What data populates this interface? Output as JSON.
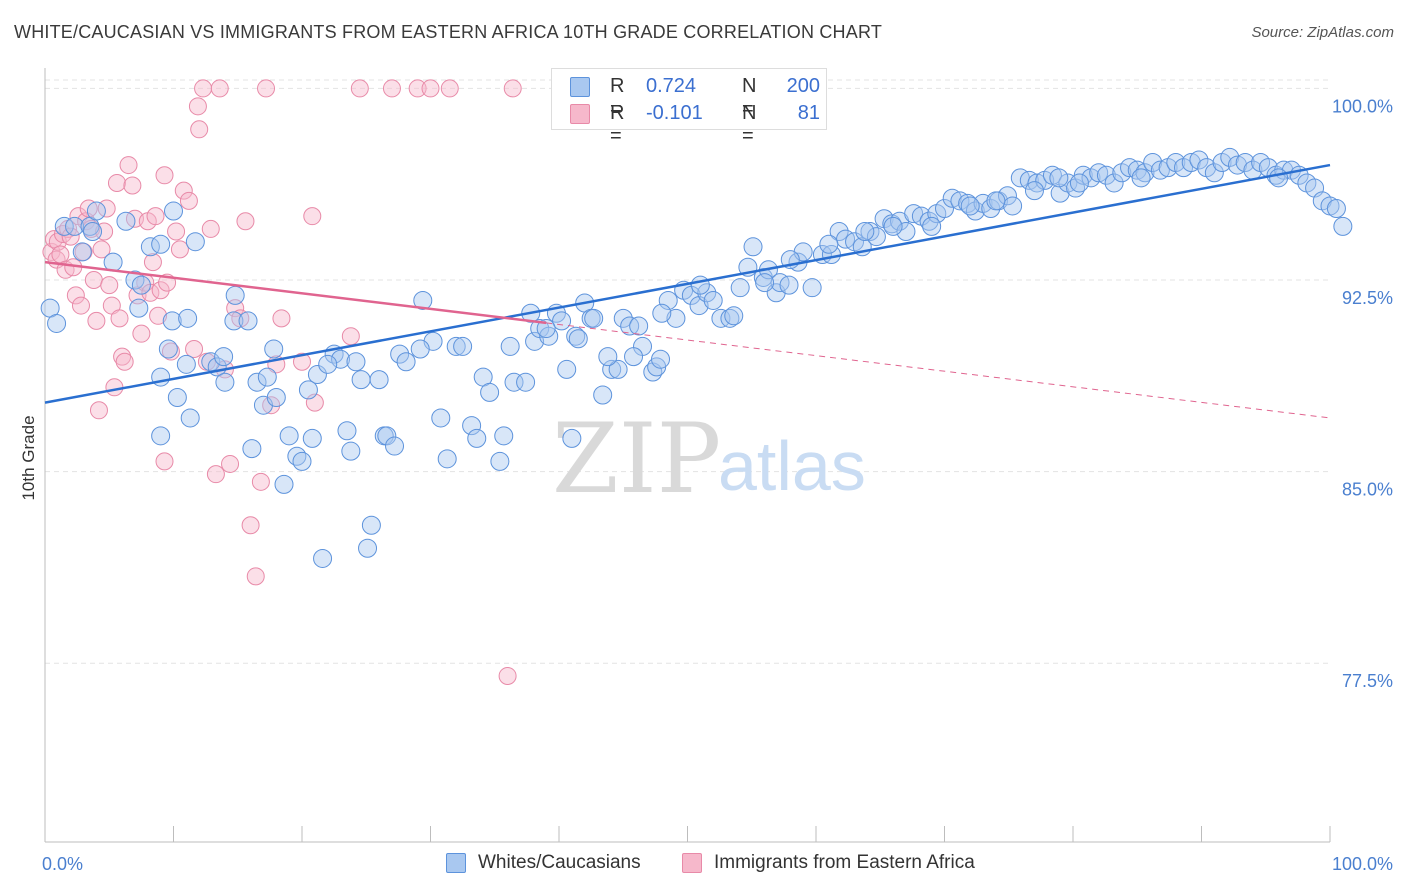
{
  "header": {
    "title": "WHITE/CAUCASIAN VS IMMIGRANTS FROM EASTERN AFRICA 10TH GRADE CORRELATION CHART",
    "source": "Source: ZipAtlas.com"
  },
  "watermark": {
    "zip": "ZIP",
    "atlas": "atlas"
  },
  "legend": {
    "rows": [
      {
        "r_label": "R =",
        "r_value": "0.724",
        "n_label": "N =",
        "n_value": "200"
      },
      {
        "r_label": "R =",
        "r_value": "-0.101",
        "n_label": "N =",
        "n_value": "81"
      }
    ]
  },
  "bottom_legend": [
    "Whites/Caucasians",
    "Immigrants from Eastern Africa"
  ],
  "colors": {
    "blue_fill": "#a9c8f0",
    "blue_stroke": "#5d93dc",
    "blue_line": "#2a6fd0",
    "pink_fill": "#f6b8cb",
    "pink_stroke": "#e88aa8",
    "pink_line": "#e0648f",
    "grid": "#e3e3e3",
    "tick_text": "#4a7fcf"
  },
  "chart_data": {
    "type": "scatter",
    "title": "WHITE/CAUCASIAN VS IMMIGRANTS FROM EASTERN AFRICA 10TH GRADE CORRELATION CHART",
    "xlabel": "",
    "ylabel": "10th Grade",
    "xlim": [
      0,
      100
    ],
    "ylim": [
      70.5,
      100.8
    ],
    "x_tick_labels": [
      "0.0%",
      "100.0%"
    ],
    "y_ticks": [
      77.5,
      85.0,
      92.5,
      100.0
    ],
    "y_tick_labels": [
      "77.5%",
      "85.0%",
      "92.5%",
      "100.0%"
    ],
    "grid": true,
    "legend_position": "top-center",
    "series": [
      {
        "name": "Whites/Caucasians",
        "r": 0.724,
        "n": 200,
        "trend": {
          "x": [
            0,
            100
          ],
          "y": [
            87.7,
            97.0
          ]
        },
        "points": [
          [
            0.4,
            91.4
          ],
          [
            0.9,
            90.8
          ],
          [
            1.5,
            94.6
          ],
          [
            2.3,
            94.6
          ],
          [
            3.5,
            94.6
          ],
          [
            4.0,
            95.2
          ],
          [
            2.9,
            93.6
          ],
          [
            3.7,
            94.4
          ],
          [
            5.3,
            93.2
          ],
          [
            6.3,
            94.8
          ],
          [
            7.3,
            91.4
          ],
          [
            7.0,
            92.5
          ],
          [
            7.5,
            92.3
          ],
          [
            8.2,
            93.8
          ],
          [
            9.0,
            93.9
          ],
          [
            10.0,
            95.2
          ],
          [
            9.0,
            88.7
          ],
          [
            9.0,
            86.4
          ],
          [
            9.6,
            89.8
          ],
          [
            9.9,
            90.9
          ],
          [
            10.3,
            87.9
          ],
          [
            11.0,
            89.2
          ],
          [
            11.1,
            91.0
          ],
          [
            11.3,
            87.1
          ],
          [
            11.7,
            94.0
          ],
          [
            12.9,
            89.3
          ],
          [
            13.4,
            89.1
          ],
          [
            13.9,
            89.5
          ],
          [
            14.0,
            88.5
          ],
          [
            14.7,
            90.9
          ],
          [
            14.8,
            91.9
          ],
          [
            15.8,
            90.9
          ],
          [
            16.1,
            85.9
          ],
          [
            16.5,
            88.5
          ],
          [
            17.0,
            87.6
          ],
          [
            17.3,
            88.7
          ],
          [
            17.8,
            89.8
          ],
          [
            18.6,
            84.5
          ],
          [
            19.0,
            86.4
          ],
          [
            19.6,
            85.6
          ],
          [
            20.0,
            85.4
          ],
          [
            20.8,
            86.3
          ],
          [
            21.2,
            88.8
          ],
          [
            21.6,
            81.6
          ],
          [
            22.5,
            89.6
          ],
          [
            23.0,
            89.4
          ],
          [
            23.5,
            86.6
          ],
          [
            23.8,
            85.8
          ],
          [
            24.2,
            89.3
          ],
          [
            24.6,
            88.6
          ],
          [
            25.1,
            82.0
          ],
          [
            25.4,
            82.9
          ],
          [
            26.4,
            86.4
          ],
          [
            26.6,
            86.4
          ],
          [
            27.2,
            86.0
          ],
          [
            27.6,
            89.6
          ],
          [
            28.1,
            89.3
          ],
          [
            29.4,
            91.7
          ],
          [
            30.2,
            90.1
          ],
          [
            30.8,
            87.1
          ],
          [
            31.3,
            85.5
          ],
          [
            32.0,
            89.9
          ],
          [
            32.5,
            89.9
          ],
          [
            33.2,
            86.8
          ],
          [
            33.6,
            86.3
          ],
          [
            34.1,
            88.7
          ],
          [
            34.6,
            88.1
          ],
          [
            35.4,
            85.4
          ],
          [
            35.7,
            86.4
          ],
          [
            36.2,
            89.9
          ],
          [
            36.5,
            88.5
          ],
          [
            37.4,
            88.5
          ],
          [
            37.8,
            91.2
          ],
          [
            38.1,
            90.1
          ],
          [
            38.5,
            90.6
          ],
          [
            39.2,
            90.3
          ],
          [
            39.8,
            91.2
          ],
          [
            40.2,
            90.9
          ],
          [
            40.6,
            89.0
          ],
          [
            41.0,
            86.3
          ],
          [
            41.3,
            90.3
          ],
          [
            42.0,
            91.6
          ],
          [
            42.5,
            91.0
          ],
          [
            42.7,
            91.0
          ],
          [
            43.4,
            88.0
          ],
          [
            44.1,
            89.0
          ],
          [
            44.6,
            89.0
          ],
          [
            45.0,
            91.0
          ],
          [
            45.5,
            90.7
          ],
          [
            46.2,
            90.7
          ],
          [
            46.5,
            89.9
          ],
          [
            47.3,
            88.9
          ],
          [
            47.6,
            89.1
          ],
          [
            47.9,
            89.4
          ],
          [
            48.5,
            91.7
          ],
          [
            49.1,
            91.0
          ],
          [
            49.7,
            92.1
          ],
          [
            50.3,
            91.9
          ],
          [
            50.9,
            91.5
          ],
          [
            51.5,
            92.0
          ],
          [
            52.0,
            91.7
          ],
          [
            52.6,
            91.0
          ],
          [
            53.3,
            91.0
          ],
          [
            54.1,
            92.2
          ],
          [
            54.7,
            93.0
          ],
          [
            55.1,
            93.8
          ],
          [
            55.9,
            92.6
          ],
          [
            56.3,
            92.9
          ],
          [
            56.9,
            92.0
          ],
          [
            57.2,
            92.4
          ],
          [
            57.9,
            92.3
          ],
          [
            58.6,
            93.2
          ],
          [
            59.0,
            93.6
          ],
          [
            59.7,
            92.2
          ],
          [
            60.5,
            93.5
          ],
          [
            61.2,
            93.5
          ],
          [
            61.8,
            94.4
          ],
          [
            62.3,
            94.1
          ],
          [
            63.0,
            94.0
          ],
          [
            63.6,
            93.8
          ],
          [
            64.2,
            94.4
          ],
          [
            64.7,
            94.2
          ],
          [
            65.3,
            94.9
          ],
          [
            65.9,
            94.7
          ],
          [
            66.5,
            94.8
          ],
          [
            67.0,
            94.4
          ],
          [
            67.6,
            95.1
          ],
          [
            68.2,
            95.0
          ],
          [
            68.8,
            94.8
          ],
          [
            69.4,
            95.1
          ],
          [
            70.0,
            95.3
          ],
          [
            70.6,
            95.7
          ],
          [
            71.2,
            95.6
          ],
          [
            71.8,
            95.5
          ],
          [
            72.4,
            95.2
          ],
          [
            73.0,
            95.5
          ],
          [
            73.6,
            95.3
          ],
          [
            74.2,
            95.6
          ],
          [
            74.9,
            95.8
          ],
          [
            75.3,
            95.4
          ],
          [
            75.9,
            96.5
          ],
          [
            76.6,
            96.4
          ],
          [
            77.2,
            96.3
          ],
          [
            77.8,
            96.4
          ],
          [
            78.4,
            96.6
          ],
          [
            79.0,
            95.9
          ],
          [
            79.6,
            96.3
          ],
          [
            80.2,
            96.1
          ],
          [
            80.8,
            96.6
          ],
          [
            81.4,
            96.5
          ],
          [
            82.0,
            96.7
          ],
          [
            82.6,
            96.6
          ],
          [
            83.2,
            96.3
          ],
          [
            83.8,
            96.7
          ],
          [
            84.4,
            96.9
          ],
          [
            85.0,
            96.8
          ],
          [
            85.6,
            96.7
          ],
          [
            86.2,
            97.1
          ],
          [
            86.8,
            96.8
          ],
          [
            87.4,
            96.9
          ],
          [
            88.0,
            97.1
          ],
          [
            88.6,
            96.9
          ],
          [
            89.2,
            97.1
          ],
          [
            89.8,
            97.2
          ],
          [
            90.4,
            96.9
          ],
          [
            91.0,
            96.7
          ],
          [
            91.6,
            97.1
          ],
          [
            92.2,
            97.3
          ],
          [
            92.8,
            97.0
          ],
          [
            93.4,
            97.1
          ],
          [
            94.0,
            96.8
          ],
          [
            94.6,
            97.1
          ],
          [
            95.2,
            96.9
          ],
          [
            95.8,
            96.6
          ],
          [
            96.4,
            96.8
          ],
          [
            97.0,
            96.8
          ],
          [
            97.6,
            96.6
          ],
          [
            98.2,
            96.3
          ],
          [
            98.8,
            96.1
          ],
          [
            99.4,
            95.6
          ],
          [
            100.0,
            95.4
          ],
          [
            100.5,
            95.3
          ],
          [
            101.0,
            94.6
          ],
          [
            96.0,
            96.5
          ],
          [
            85.3,
            96.5
          ],
          [
            80.5,
            96.3
          ],
          [
            78.9,
            96.5
          ],
          [
            77.0,
            96.0
          ],
          [
            74.0,
            95.6
          ],
          [
            72.0,
            95.4
          ],
          [
            69.0,
            94.6
          ],
          [
            66.0,
            94.6
          ],
          [
            63.8,
            94.4
          ],
          [
            61.0,
            93.9
          ],
          [
            58.0,
            93.3
          ],
          [
            56.0,
            92.4
          ],
          [
            53.6,
            91.1
          ],
          [
            51.0,
            92.3
          ],
          [
            48.0,
            91.2
          ],
          [
            45.8,
            89.5
          ],
          [
            43.8,
            89.5
          ],
          [
            41.5,
            90.2
          ],
          [
            39.0,
            90.6
          ],
          [
            29.2,
            89.8
          ],
          [
            26.0,
            88.6
          ],
          [
            22.0,
            89.2
          ],
          [
            20.5,
            88.2
          ],
          [
            18.0,
            87.9
          ]
        ]
      },
      {
        "name": "Immigrants from Eastern Africa",
        "r": -0.101,
        "n": 81,
        "trend": {
          "x": [
            0,
            100
          ],
          "y": [
            93.2,
            87.1
          ],
          "solid_until_x": 39
        },
        "points": [
          [
            0.5,
            93.6
          ],
          [
            0.7,
            94.1
          ],
          [
            0.9,
            93.3
          ],
          [
            1.0,
            94.0
          ],
          [
            1.2,
            93.5
          ],
          [
            1.4,
            94.3
          ],
          [
            1.6,
            92.9
          ],
          [
            1.8,
            94.5
          ],
          [
            2.0,
            94.2
          ],
          [
            2.2,
            93.0
          ],
          [
            2.4,
            91.9
          ],
          [
            2.6,
            95.0
          ],
          [
            2.8,
            91.5
          ],
          [
            3.0,
            93.6
          ],
          [
            3.2,
            94.8
          ],
          [
            3.4,
            95.3
          ],
          [
            3.6,
            94.5
          ],
          [
            3.8,
            92.5
          ],
          [
            4.0,
            90.9
          ],
          [
            4.2,
            87.4
          ],
          [
            4.4,
            93.7
          ],
          [
            4.6,
            94.4
          ],
          [
            4.8,
            95.3
          ],
          [
            5.0,
            92.3
          ],
          [
            5.2,
            91.5
          ],
          [
            5.4,
            88.3
          ],
          [
            5.6,
            96.3
          ],
          [
            5.8,
            91.0
          ],
          [
            6.0,
            89.5
          ],
          [
            6.2,
            89.3
          ],
          [
            6.5,
            97.0
          ],
          [
            6.8,
            96.2
          ],
          [
            7.0,
            94.9
          ],
          [
            7.2,
            91.9
          ],
          [
            7.5,
            90.4
          ],
          [
            7.8,
            92.4
          ],
          [
            8.0,
            94.8
          ],
          [
            8.2,
            92.0
          ],
          [
            8.4,
            93.2
          ],
          [
            8.6,
            95.0
          ],
          [
            8.8,
            91.1
          ],
          [
            9.0,
            92.1
          ],
          [
            9.3,
            85.4
          ],
          [
            9.5,
            92.4
          ],
          [
            9.8,
            89.7
          ],
          [
            10.2,
            94.4
          ],
          [
            10.5,
            93.7
          ],
          [
            10.8,
            96.0
          ],
          [
            11.2,
            95.6
          ],
          [
            11.6,
            89.8
          ],
          [
            11.9,
            99.3
          ],
          [
            12.3,
            100.0
          ],
          [
            12.6,
            89.3
          ],
          [
            12.9,
            94.5
          ],
          [
            13.3,
            84.9
          ],
          [
            13.6,
            100.0
          ],
          [
            14.0,
            89.0
          ],
          [
            14.4,
            85.3
          ],
          [
            14.8,
            91.4
          ],
          [
            15.2,
            91.0
          ],
          [
            15.6,
            94.8
          ],
          [
            16.0,
            82.9
          ],
          [
            16.4,
            80.9
          ],
          [
            16.8,
            84.6
          ],
          [
            17.2,
            100.0
          ],
          [
            17.6,
            87.6
          ],
          [
            18.0,
            89.2
          ],
          [
            18.4,
            91.0
          ],
          [
            20.8,
            95.0
          ],
          [
            21.0,
            87.7
          ],
          [
            23.8,
            90.3
          ],
          [
            24.5,
            100.0
          ],
          [
            27.0,
            100.0
          ],
          [
            29.0,
            100.0
          ],
          [
            30.0,
            100.0
          ],
          [
            31.5,
            100.0
          ],
          [
            36.4,
            100.0
          ],
          [
            36.0,
            77.0
          ],
          [
            20.0,
            89.3
          ],
          [
            12.0,
            98.4
          ],
          [
            9.3,
            96.6
          ]
        ]
      }
    ]
  }
}
